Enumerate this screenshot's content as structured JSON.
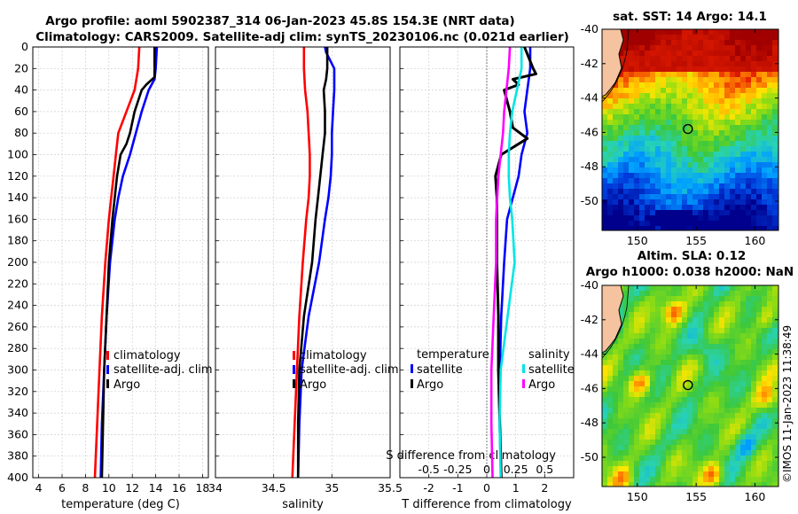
{
  "header": {
    "line1": "Argo profile: aoml 5902387_314 06-Jan-2023 45.8S 154.3E (NRT data)",
    "line2": "Climatology: CARS2009. Satellite-adj clim: synTS_20230106.nc (0.021d earlier)"
  },
  "timestamp": "©IMOS 11-Jan-2023 11:38:49",
  "colors": {
    "climatology": "#ff0000",
    "satellite": "#0000ff",
    "argo": "#000000",
    "satellite_s": "#00e5e5",
    "argo_s": "#ff00ff"
  },
  "chart_data": [
    {
      "type": "line",
      "id": "temperature",
      "xlabel": "temperature (deg C)",
      "xlim": [
        3.5,
        18.5
      ],
      "xticks": [
        "4",
        "6",
        "8",
        "10",
        "12",
        "14",
        "16",
        "18"
      ],
      "ylim": [
        0,
        400
      ],
      "yticks": [
        "0",
        "20",
        "40",
        "60",
        "80",
        "100",
        "120",
        "140",
        "160",
        "180",
        "200",
        "220",
        "240",
        "260",
        "280",
        "300",
        "320",
        "340",
        "360",
        "380",
        "400"
      ],
      "legend": [
        "climatology",
        "satellite-adj. clim",
        "Argo"
      ],
      "series": [
        {
          "name": "climatology",
          "depth": [
            0,
            20,
            40,
            60,
            80,
            100,
            120,
            140,
            160,
            200,
            250,
            300,
            350,
            400
          ],
          "values": [
            12.6,
            12.5,
            12.2,
            11.5,
            10.8,
            10.6,
            10.4,
            10.2,
            10.0,
            9.7,
            9.4,
            9.2,
            9.0,
            8.8
          ]
        },
        {
          "name": "satellite-adj. clim",
          "depth": [
            0,
            20,
            30,
            40,
            60,
            80,
            100,
            120,
            140,
            160,
            200,
            250,
            300,
            350,
            400
          ],
          "values": [
            14.1,
            14.0,
            13.9,
            13.4,
            12.8,
            12.3,
            11.8,
            11.2,
            10.8,
            10.5,
            10.1,
            9.8,
            9.6,
            9.4,
            9.3
          ]
        },
        {
          "name": "Argo",
          "depth": [
            0,
            20,
            28,
            35,
            40,
            60,
            80,
            90,
            100,
            120,
            140,
            160,
            200,
            250,
            300,
            350,
            400
          ],
          "values": [
            13.9,
            13.9,
            13.9,
            13.2,
            12.8,
            12.2,
            11.8,
            11.5,
            11.0,
            10.7,
            10.5,
            10.3,
            10.0,
            9.8,
            9.6,
            9.5,
            9.4
          ]
        }
      ]
    },
    {
      "type": "line",
      "id": "salinity",
      "xlabel": "salinity",
      "xlim": [
        34,
        35.5
      ],
      "xticks": [
        "34",
        "34.5",
        "35",
        "35.5"
      ],
      "ylim": [
        0,
        400
      ],
      "legend": [
        "climatology",
        "satellite-adj. clim",
        "Argo"
      ],
      "series": [
        {
          "name": "climatology",
          "depth": [
            0,
            20,
            40,
            60,
            80,
            100,
            120,
            140,
            160,
            200,
            250,
            300,
            350,
            400
          ],
          "values": [
            34.76,
            34.76,
            34.77,
            34.79,
            34.8,
            34.81,
            34.81,
            34.8,
            34.78,
            34.75,
            34.72,
            34.7,
            34.68,
            34.66
          ]
        },
        {
          "name": "satellite-adj. clim",
          "depth": [
            0,
            5,
            20,
            40,
            60,
            80,
            100,
            120,
            140,
            160,
            200,
            250,
            300,
            350,
            400
          ],
          "values": [
            34.94,
            34.95,
            35.02,
            35.02,
            35.01,
            35.0,
            35.0,
            34.99,
            34.97,
            34.94,
            34.89,
            34.8,
            34.74,
            34.72,
            34.71
          ]
        },
        {
          "name": "Argo",
          "depth": [
            0,
            20,
            30,
            40,
            60,
            80,
            100,
            120,
            140,
            160,
            200,
            250,
            300,
            350,
            400
          ],
          "values": [
            34.96,
            34.96,
            34.95,
            34.93,
            34.94,
            34.94,
            34.92,
            34.9,
            34.88,
            34.86,
            34.83,
            34.76,
            34.72,
            34.71,
            34.71
          ]
        }
      ]
    },
    {
      "type": "line",
      "id": "difference",
      "xlabel": "T difference from climatology",
      "xlabel_top": "S difference from climatology",
      "xlim": [
        -3,
        3
      ],
      "xticks": [
        "-2",
        "-1",
        "0",
        "1",
        "2"
      ],
      "xticks_top": [
        "-0.5",
        "-0.25",
        "0",
        "0.25",
        "0.5"
      ],
      "ylim": [
        0,
        400
      ],
      "legend_title_t": "temperature",
      "legend_title_s": "salinity",
      "legend_t": [
        "satellite",
        "Argo"
      ],
      "legend_s": [
        "satellite",
        "Argo"
      ],
      "series": [
        {
          "name": "T satellite",
          "depth": [
            0,
            20,
            40,
            60,
            80,
            100,
            120,
            140,
            160,
            200,
            250,
            300,
            350,
            400
          ],
          "values": [
            1.5,
            1.5,
            1.4,
            1.3,
            1.4,
            1.2,
            1.1,
            0.9,
            0.7,
            0.6,
            0.5,
            0.45,
            0.45,
            0.5
          ]
        },
        {
          "name": "T Argo",
          "depth": [
            0,
            20,
            25,
            30,
            35,
            40,
            60,
            75,
            85,
            100,
            120,
            140,
            160,
            200,
            250,
            300,
            350,
            400
          ],
          "values": [
            1.3,
            1.6,
            1.7,
            0.9,
            1.1,
            0.6,
            0.8,
            0.9,
            1.4,
            0.5,
            0.3,
            0.35,
            0.35,
            0.35,
            0.4,
            0.4,
            0.45,
            0.5
          ]
        },
        {
          "name": "S satellite",
          "depth": [
            0,
            20,
            40,
            60,
            80,
            100,
            120,
            140,
            160,
            200,
            250,
            300,
            350,
            400
          ],
          "values": [
            0.3,
            0.3,
            0.26,
            0.22,
            0.2,
            0.19,
            0.19,
            0.2,
            0.22,
            0.24,
            0.18,
            0.12,
            0.11,
            0.12
          ]
        },
        {
          "name": "S Argo",
          "depth": [
            0,
            20,
            40,
            60,
            80,
            100,
            120,
            140,
            160,
            200,
            250,
            300,
            350,
            400
          ],
          "values": [
            0.2,
            0.19,
            0.17,
            0.15,
            0.14,
            0.12,
            0.1,
            0.09,
            0.08,
            0.08,
            0.06,
            0.04,
            0.04,
            0.05
          ]
        }
      ]
    },
    {
      "type": "heatmap",
      "id": "sst-map",
      "title": "sat. SST: 14 Argo: 14.1",
      "xlim": [
        147,
        162
      ],
      "ylim": [
        -51.7,
        -40
      ],
      "xticks": [
        "150",
        "155",
        "160"
      ],
      "yticks": [
        "-40",
        "-42",
        "-44",
        "-46",
        "-48",
        "-50"
      ],
      "marker": {
        "lon": 154.3,
        "lat": -45.8
      }
    },
    {
      "type": "heatmap",
      "id": "sla-map",
      "title": "Altim. SLA: 0.12",
      "subtitle": "Argo h1000: 0.038 h2000: NaN",
      "xlim": [
        147,
        162
      ],
      "ylim": [
        -51.7,
        -40
      ],
      "xticks": [
        "150",
        "155",
        "160"
      ],
      "yticks": [
        "-40",
        "-42",
        "-44",
        "-46",
        "-48",
        "-50"
      ],
      "marker": {
        "lon": 154.3,
        "lat": -45.8
      }
    }
  ]
}
